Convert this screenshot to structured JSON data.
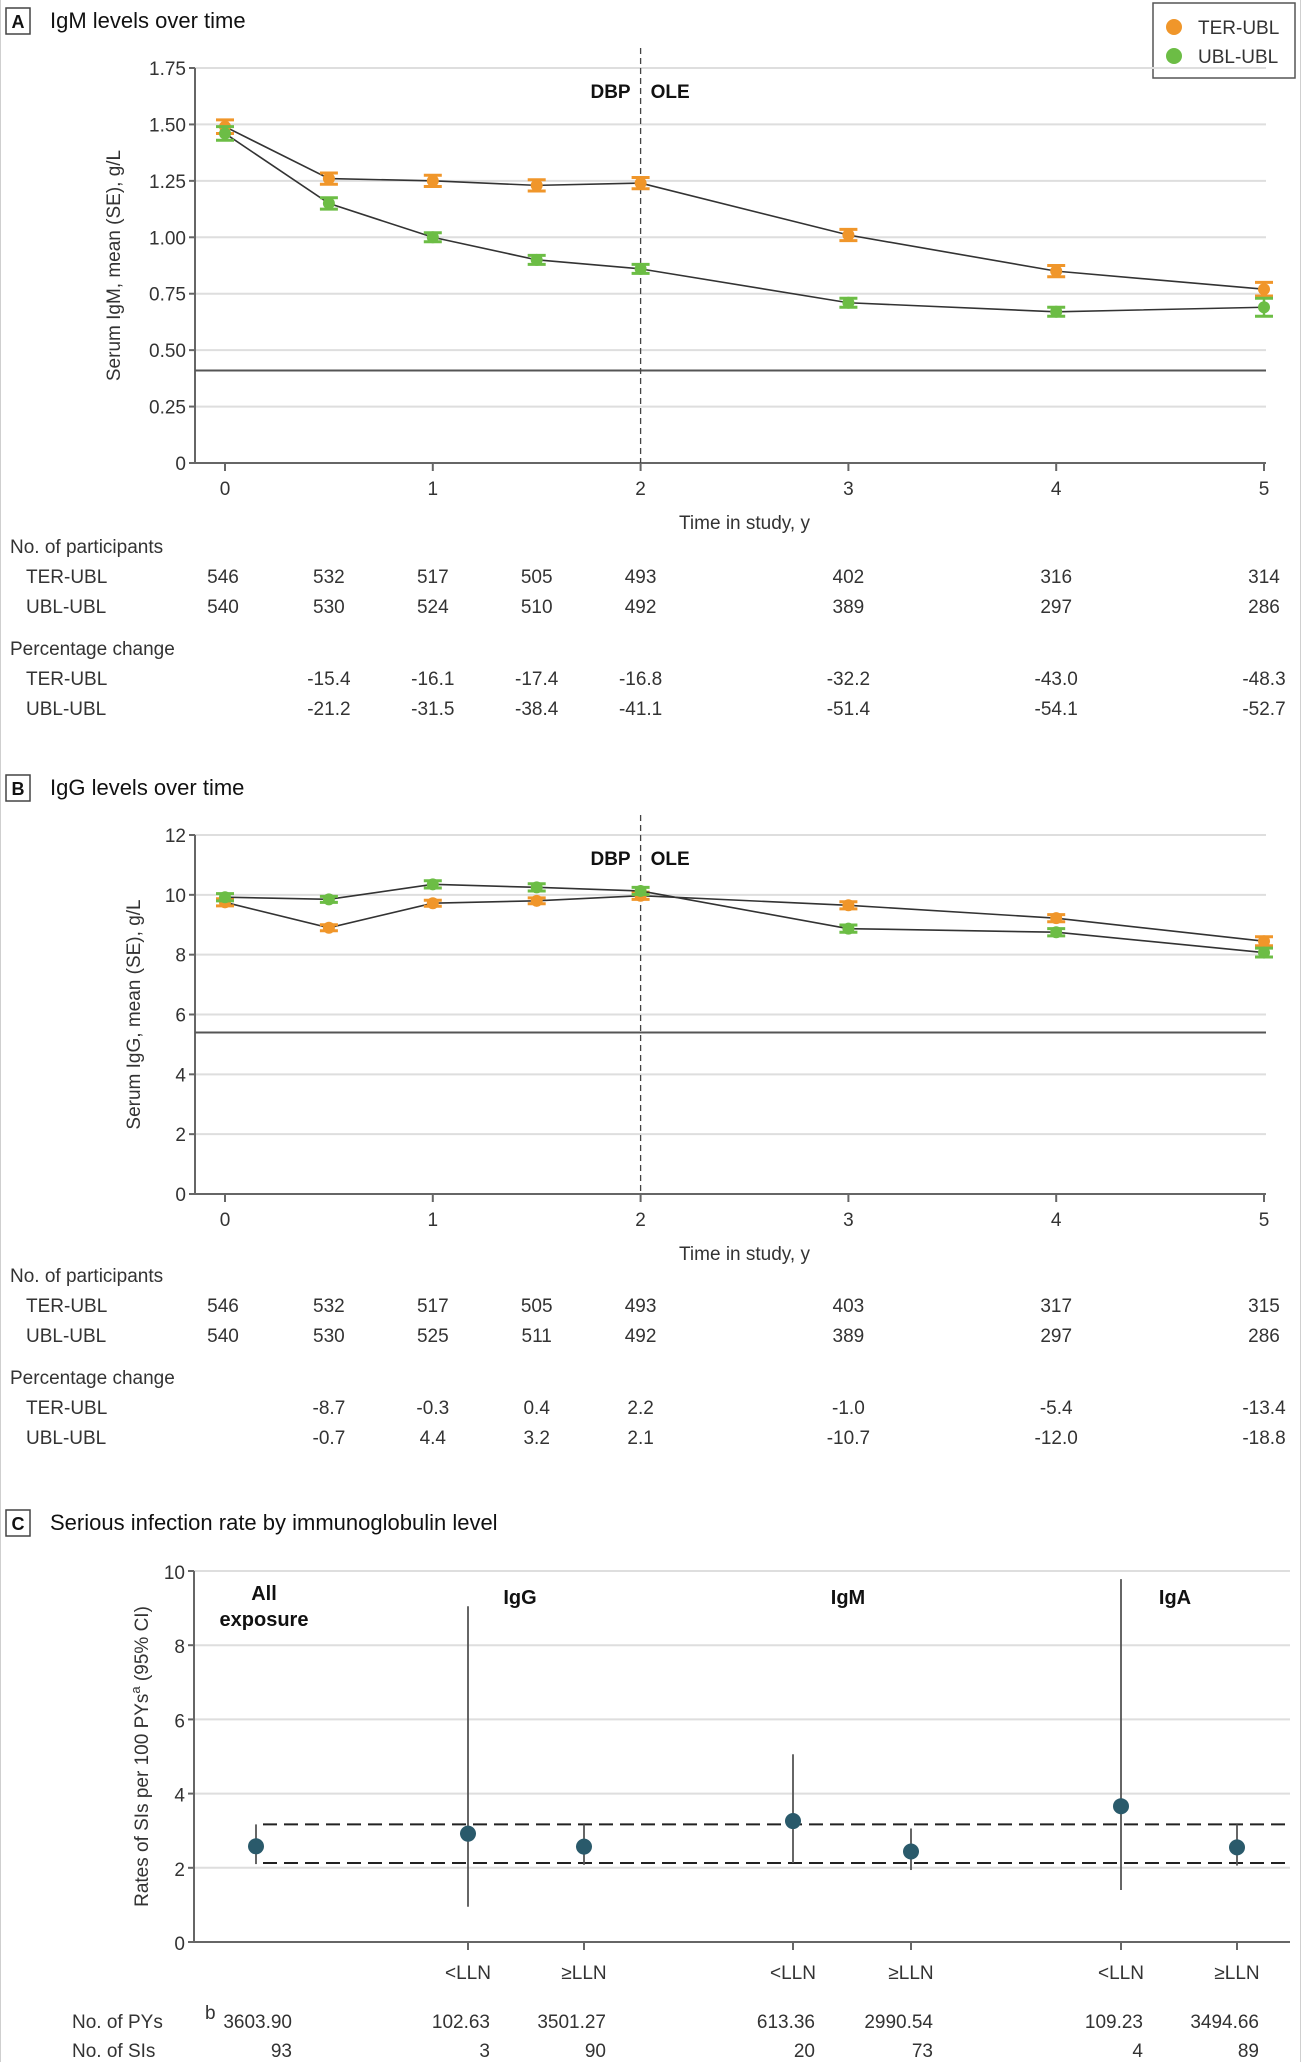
{
  "legend": {
    "items": [
      {
        "label": "TER-UBL",
        "color": "#f0962a"
      },
      {
        "label": "UBL-UBL",
        "color": "#6cbd45"
      }
    ]
  },
  "chart_data": [
    {
      "type": "line",
      "panel": "A",
      "title": "IgM levels over time",
      "xlabel": "Time in study, y",
      "ylabel": "Serum IgM, mean (SE), g/L",
      "xlim": [
        0,
        5
      ],
      "ylim": [
        0,
        1.75
      ],
      "xticks": [
        "0",
        "1",
        "2",
        "3",
        "4",
        "5"
      ],
      "yticks": [
        "0",
        "0.25",
        "0.50",
        "0.75",
        "1.00",
        "1.25",
        "1.50",
        "1.75"
      ],
      "grid": true,
      "phase_labels": [
        "DBP",
        "OLE"
      ],
      "phase_boundary_x": 2,
      "lln_value": 0.41,
      "x": [
        0,
        0.5,
        1,
        1.5,
        2,
        3,
        4,
        5
      ],
      "series": [
        {
          "name": "TER-UBL",
          "values": [
            1.49,
            1.26,
            1.25,
            1.23,
            1.24,
            1.01,
            0.85,
            0.77
          ],
          "se": [
            0.03,
            0.025,
            0.025,
            0.025,
            0.025,
            0.025,
            0.025,
            0.03
          ]
        },
        {
          "name": "UBL-UBL",
          "values": [
            1.46,
            1.15,
            1.0,
            0.9,
            0.86,
            0.71,
            0.67,
            0.69
          ],
          "se": [
            0.03,
            0.025,
            0.02,
            0.02,
            0.02,
            0.02,
            0.02,
            0.04
          ]
        }
      ],
      "table": {
        "participants_header": "No. of participants",
        "participants": [
          {
            "label": "TER-UBL",
            "values": [
              "546",
              "532",
              "517",
              "505",
              "493",
              "402",
              "316",
              "314"
            ]
          },
          {
            "label": "UBL-UBL",
            "values": [
              "540",
              "530",
              "524",
              "510",
              "492",
              "389",
              "297",
              "286"
            ]
          }
        ],
        "pct_header": "Percentage change",
        "pct": [
          {
            "label": "TER-UBL",
            "values": [
              "",
              "-15.4",
              "-16.1",
              "-17.4",
              "-16.8",
              "-32.2",
              "-43.0",
              "-48.3"
            ]
          },
          {
            "label": "UBL-UBL",
            "values": [
              "",
              "-21.2",
              "-31.5",
              "-38.4",
              "-41.1",
              "-51.4",
              "-54.1",
              "-52.7"
            ]
          }
        ]
      }
    },
    {
      "type": "line",
      "panel": "B",
      "title": "IgG levels over time",
      "xlabel": "Time in study, y",
      "ylabel": "Serum IgG, mean (SE), g/L",
      "xlim": [
        0,
        5
      ],
      "ylim": [
        0,
        12
      ],
      "xticks": [
        "0",
        "1",
        "2",
        "3",
        "4",
        "5"
      ],
      "yticks": [
        "0",
        "2",
        "4",
        "6",
        "8",
        "10",
        "12"
      ],
      "grid": true,
      "phase_labels": [
        "DBP",
        "OLE"
      ],
      "phase_boundary_x": 2,
      "lln_value": 5.4,
      "x": [
        0,
        0.5,
        1,
        1.5,
        2,
        3,
        4,
        5
      ],
      "series": [
        {
          "name": "TER-UBL",
          "values": [
            9.75,
            8.9,
            9.72,
            9.8,
            9.97,
            9.65,
            9.22,
            8.45
          ],
          "se": [
            0.12,
            0.1,
            0.1,
            0.1,
            0.12,
            0.12,
            0.12,
            0.15
          ]
        },
        {
          "name": "UBL-UBL",
          "values": [
            9.92,
            9.85,
            10.35,
            10.25,
            10.13,
            8.87,
            8.75,
            8.07
          ],
          "se": [
            0.12,
            0.1,
            0.12,
            0.12,
            0.12,
            0.12,
            0.12,
            0.15
          ]
        }
      ],
      "table": {
        "participants_header": "No. of participants",
        "participants": [
          {
            "label": "TER-UBL",
            "values": [
              "546",
              "532",
              "517",
              "505",
              "493",
              "403",
              "317",
              "315"
            ]
          },
          {
            "label": "UBL-UBL",
            "values": [
              "540",
              "530",
              "525",
              "511",
              "492",
              "389",
              "297",
              "286"
            ]
          }
        ],
        "pct_header": "Percentage change",
        "pct": [
          {
            "label": "TER-UBL",
            "values": [
              "",
              "-8.7",
              "-0.3",
              "0.4",
              "2.2",
              "-1.0",
              "-5.4",
              "-13.4"
            ]
          },
          {
            "label": "UBL-UBL",
            "values": [
              "",
              "-0.7",
              "4.4",
              "3.2",
              "2.1",
              "-10.7",
              "-12.0",
              "-18.8"
            ]
          }
        ]
      }
    },
    {
      "type": "scatter",
      "panel": "C",
      "title": "Serious infection rate by immunoglobulin level",
      "ylabel": "Rates of SIs per 100 PYs",
      "ylabel_sup": "a",
      "ylabel_suffix": " (95% CI)",
      "ylim": [
        0,
        10
      ],
      "yticks": [
        "0",
        "2",
        "4",
        "6",
        "8",
        "10"
      ],
      "grid": true,
      "group_labels": [
        "All\nexposure",
        "IgG",
        "IgM",
        "IgA"
      ],
      "reference_band": [
        2.13,
        3.17
      ],
      "marker_color": "#2a5a6b",
      "points": [
        {
          "group": "All exposure",
          "category": "",
          "rate": 2.58,
          "ci": [
            2.1,
            3.17
          ],
          "pys": "3603.90",
          "sis": "93"
        },
        {
          "group": "IgG",
          "category": "<LLN",
          "rate": 2.92,
          "ci": [
            0.95,
            9.05
          ],
          "pys": "102.63",
          "sis": "3"
        },
        {
          "group": "IgG",
          "category": "≥LLN",
          "rate": 2.57,
          "ci": [
            2.08,
            3.17
          ],
          "pys": "3501.27",
          "sis": "90"
        },
        {
          "group": "IgM",
          "category": "<LLN",
          "rate": 3.26,
          "ci": [
            2.13,
            5.06
          ],
          "pys": "613.36",
          "sis": "20"
        },
        {
          "group": "IgM",
          "category": "≥LLN",
          "rate": 2.44,
          "ci": [
            1.94,
            3.06
          ],
          "pys": "2990.54",
          "sis": "73"
        },
        {
          "group": "IgA",
          "category": "<LLN",
          "rate": 3.66,
          "ci": [
            1.4,
            9.78
          ],
          "pys": "109.23",
          "sis": "4"
        },
        {
          "group": "IgA",
          "category": "≥LLN",
          "rate": 2.55,
          "ci": [
            2.06,
            3.17
          ],
          "pys": "3494.66",
          "sis": "89"
        }
      ],
      "row_labels": {
        "pys": "No. of PYs",
        "pys_sup": "b",
        "sis": "No. of SIs"
      }
    }
  ]
}
